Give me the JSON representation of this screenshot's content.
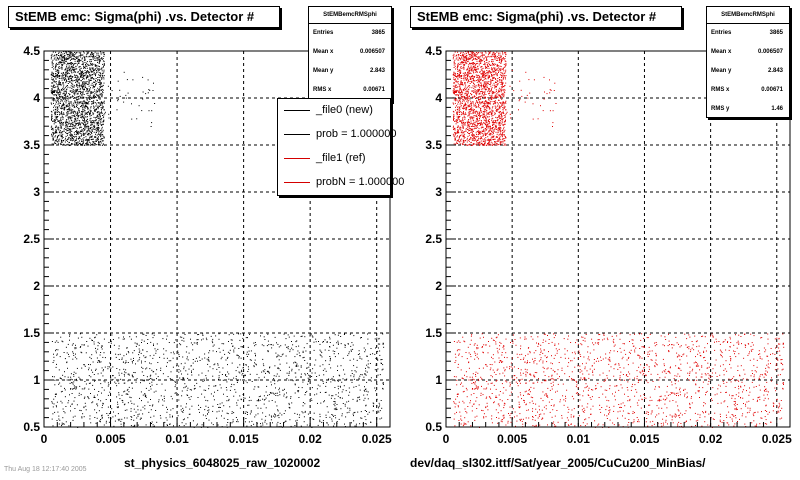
{
  "chart_data": [
    {
      "type": "scatter",
      "title": "StEMB emc: Sigma(phi) .vs. Detector #",
      "xlabel": "st_physics_6048025_raw_1020002",
      "ylabel": "",
      "xlim": [
        0,
        0.026
      ],
      "ylim": [
        0.5,
        4.5
      ],
      "x_ticks": [
        "0",
        "0.005",
        "0.01",
        "0.015",
        "0.02",
        "0.025"
      ],
      "y_ticks": [
        "0.5",
        "1",
        "1.5",
        "2",
        "2.5",
        "3",
        "3.5",
        "4",
        "4.5"
      ],
      "grid": true,
      "marker_color": "#000000",
      "clusters": [
        {
          "x_range": [
            0.0005,
            0.0045
          ],
          "y_range": [
            3.5,
            4.5
          ],
          "points": 2100
        },
        {
          "x_range": [
            0.0045,
            0.0085
          ],
          "y_range": [
            3.7,
            4.3
          ],
          "points": 40
        },
        {
          "x_range": [
            0.0005,
            0.0255
          ],
          "y_range": [
            0.5,
            1.5
          ],
          "points": 1700
        }
      ],
      "stats": {
        "box_title": "StEMBemcRMSphi",
        "rows": [
          {
            "label": "Entries",
            "value": "3865"
          },
          {
            "label": "Mean x",
            "value": "0.006507"
          },
          {
            "label": "Mean y",
            "value": "2.843"
          },
          {
            "label": "RMS x",
            "value": "0.00671"
          }
        ]
      },
      "legend": [
        {
          "label": "_file0 (new)",
          "color": "#000000"
        },
        {
          "label": "prob = 1.000000",
          "color": "#000000"
        },
        {
          "label": "_file1 (ref)",
          "color": "#d40000"
        },
        {
          "label": "probN = 1.000000",
          "color": "#d40000"
        }
      ],
      "legend_placement": "top-right"
    },
    {
      "type": "scatter",
      "title": "StEMB emc: Sigma(phi) .vs. Detector #",
      "xlabel": "dev/daq_sl302.ittf/Sat/year_2005/CuCu200_MinBias/",
      "ylabel": "",
      "xlim": [
        0,
        0.026
      ],
      "ylim": [
        0.5,
        4.5
      ],
      "x_ticks": [
        "0",
        "0.005",
        "0.01",
        "0.015",
        "0.02",
        "0.025"
      ],
      "y_ticks": [
        "0.5",
        "1",
        "1.5",
        "2",
        "2.5",
        "3",
        "3.5",
        "4",
        "4.5"
      ],
      "grid": true,
      "marker_color": "#e00000",
      "clusters": [
        {
          "x_range": [
            0.0005,
            0.0045
          ],
          "y_range": [
            3.5,
            4.5
          ],
          "points": 2100
        },
        {
          "x_range": [
            0.0045,
            0.0085
          ],
          "y_range": [
            3.7,
            4.3
          ],
          "points": 40
        },
        {
          "x_range": [
            0.0005,
            0.0255
          ],
          "y_range": [
            0.5,
            1.5
          ],
          "points": 1700
        }
      ],
      "stats": {
        "box_title": "StEMBemcRMSphi",
        "rows": [
          {
            "label": "Entries",
            "value": "3865"
          },
          {
            "label": "Mean x",
            "value": "0.006507"
          },
          {
            "label": "Mean y",
            "value": "2.843"
          },
          {
            "label": "RMS x",
            "value": "0.00671"
          },
          {
            "label": "RMS y",
            "value": "1.46"
          }
        ]
      }
    }
  ],
  "footer_note": "Thu Aug 18 12:17:40 2005"
}
